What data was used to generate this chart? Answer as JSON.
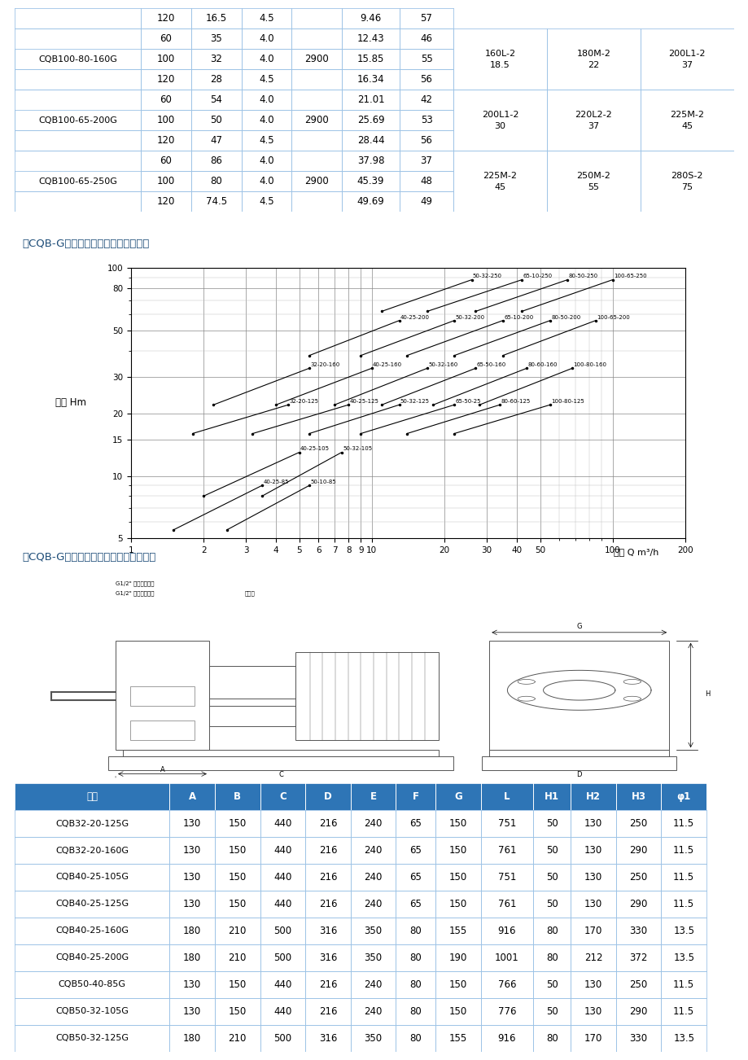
{
  "top_table_rows": [
    {
      "model": null,
      "q": "120",
      "h": "16.5",
      "eta": "4.5",
      "n": "",
      "p": "9.46",
      "npsh": "57",
      "m1": null,
      "m2": null,
      "m3": null,
      "model_span": 0
    },
    {
      "model": "CQB100-80-160G",
      "q": "60",
      "h": "35",
      "eta": "4.0",
      "n": "",
      "p": "12.43",
      "npsh": "46",
      "m1": "160L-2\n18.5",
      "m2": "180M-2\n22",
      "m3": "200L1-2\n37",
      "model_span": 3
    },
    {
      "model": null,
      "q": "100",
      "h": "32",
      "eta": "4.0",
      "n": "2900",
      "p": "15.85",
      "npsh": "55",
      "m1": null,
      "m2": null,
      "m3": null,
      "model_span": 0
    },
    {
      "model": null,
      "q": "120",
      "h": "28",
      "eta": "4.5",
      "n": "",
      "p": "16.34",
      "npsh": "56",
      "m1": null,
      "m2": null,
      "m3": null,
      "model_span": 0
    },
    {
      "model": "CQB100-65-200G",
      "q": "60",
      "h": "54",
      "eta": "4.0",
      "n": "",
      "p": "21.01",
      "npsh": "42",
      "m1": "200L1-2\n30",
      "m2": "220L2-2\n37",
      "m3": "225M-2\n45",
      "model_span": 3
    },
    {
      "model": null,
      "q": "100",
      "h": "50",
      "eta": "4.0",
      "n": "2900",
      "p": "25.69",
      "npsh": "53",
      "m1": null,
      "m2": null,
      "m3": null,
      "model_span": 0
    },
    {
      "model": null,
      "q": "120",
      "h": "47",
      "eta": "4.5",
      "n": "",
      "p": "28.44",
      "npsh": "56",
      "m1": null,
      "m2": null,
      "m3": null,
      "model_span": 0
    },
    {
      "model": "CQB100-65-250G",
      "q": "60",
      "h": "86",
      "eta": "4.0",
      "n": "",
      "p": "37.98",
      "npsh": "37",
      "m1": "225M-2\n45",
      "m2": "250M-2\n55",
      "m3": "280S-2\n75",
      "model_span": 3
    },
    {
      "model": null,
      "q": "100",
      "h": "80",
      "eta": "4.0",
      "n": "2900",
      "p": "45.39",
      "npsh": "48",
      "m1": null,
      "m2": null,
      "m3": null,
      "model_span": 0
    },
    {
      "model": null,
      "q": "120",
      "h": "74.5",
      "eta": "4.5",
      "n": "",
      "p": "49.69",
      "npsh": "49",
      "m1": null,
      "m2": null,
      "m3": null,
      "model_span": 0
    }
  ],
  "bottom_table_headers": [
    "型号",
    "A",
    "B",
    "C",
    "D",
    "E",
    "F",
    "G",
    "L",
    "H1",
    "H2",
    "H3",
    "φ1"
  ],
  "bottom_table_rows": [
    [
      "CQB32-20-125G",
      "130",
      "150",
      "440",
      "216",
      "240",
      "65",
      "150",
      "751",
      "50",
      "130",
      "250",
      "11.5"
    ],
    [
      "CQB32-20-160G",
      "130",
      "150",
      "440",
      "216",
      "240",
      "65",
      "150",
      "761",
      "50",
      "130",
      "290",
      "11.5"
    ],
    [
      "CQB40-25-105G",
      "130",
      "150",
      "440",
      "216",
      "240",
      "65",
      "150",
      "751",
      "50",
      "130",
      "250",
      "11.5"
    ],
    [
      "CQB40-25-125G",
      "130",
      "150",
      "440",
      "216",
      "240",
      "65",
      "150",
      "761",
      "50",
      "130",
      "290",
      "11.5"
    ],
    [
      "CQB40-25-160G",
      "180",
      "210",
      "500",
      "316",
      "350",
      "80",
      "155",
      "916",
      "80",
      "170",
      "330",
      "13.5"
    ],
    [
      "CQB40-25-200G",
      "180",
      "210",
      "500",
      "316",
      "350",
      "80",
      "190",
      "1001",
      "80",
      "212",
      "372",
      "13.5"
    ],
    [
      "CQB50-40-85G",
      "130",
      "150",
      "440",
      "216",
      "240",
      "80",
      "150",
      "766",
      "50",
      "130",
      "250",
      "11.5"
    ],
    [
      "CQB50-32-105G",
      "130",
      "150",
      "440",
      "216",
      "240",
      "80",
      "150",
      "776",
      "50",
      "130",
      "290",
      "11.5"
    ],
    [
      "CQB50-32-125G",
      "180",
      "210",
      "500",
      "316",
      "350",
      "80",
      "155",
      "916",
      "80",
      "170",
      "330",
      "13.5"
    ]
  ],
  "header_bg": "#2E75B6",
  "header_fg": "#FFFFFF",
  "border_color": "#9DC3E6",
  "separator_color": "#2E75B6",
  "label1": "「CQB-G型高温磁力驱动泵」型谱图：",
  "label2": "「CQB-G型高温磁力驱动泵」外形尺小：",
  "chart_ylabel": "扬程 Hm",
  "chart_xlabel": "流量 Q m³/h",
  "label_color": "#1F4E79",
  "curve_data": [
    [
      "40-25-85",
      1.5,
      5.5,
      3.5,
      9.0
    ],
    [
      "50-10-85",
      2.5,
      5.5,
      5.5,
      9.0
    ],
    [
      "40-25-105",
      2.0,
      8.0,
      5.0,
      13.0
    ],
    [
      "50-32-105",
      3.5,
      8.0,
      7.5,
      13.0
    ],
    [
      "32-20-125",
      1.8,
      16.0,
      4.5,
      22.0
    ],
    [
      "40-25-125",
      3.2,
      16.0,
      8.0,
      22.0
    ],
    [
      "50-32-125",
      5.5,
      16.0,
      13.0,
      22.0
    ],
    [
      "65-50-25",
      9.0,
      16.0,
      22.0,
      22.0
    ],
    [
      "80-60-125",
      14.0,
      16.0,
      34.0,
      22.0
    ],
    [
      "100-80-125",
      22.0,
      16.0,
      55.0,
      22.0
    ],
    [
      "32-20-160",
      2.2,
      22.0,
      5.5,
      33.0
    ],
    [
      "40-25-160",
      4.0,
      22.0,
      10.0,
      33.0
    ],
    [
      "50-32-160",
      7.0,
      22.0,
      17.0,
      33.0
    ],
    [
      "65-50-160",
      11.0,
      22.0,
      27.0,
      33.0
    ],
    [
      "80-60-160",
      18.0,
      22.0,
      44.0,
      33.0
    ],
    [
      "100-80-160",
      28.0,
      22.0,
      68.0,
      33.0
    ],
    [
      "40-25-200",
      5.5,
      38.0,
      13.0,
      56.0
    ],
    [
      "50-32-200",
      9.0,
      38.0,
      22.0,
      56.0
    ],
    [
      "65-10-200",
      14.0,
      38.0,
      35.0,
      56.0
    ],
    [
      "80-50-200",
      22.0,
      38.0,
      55.0,
      56.0
    ],
    [
      "100-65-200",
      35.0,
      38.0,
      85.0,
      56.0
    ],
    [
      "50-32-250",
      11.0,
      62.0,
      26.0,
      88.0
    ],
    [
      "65-10-250",
      17.0,
      62.0,
      42.0,
      88.0
    ],
    [
      "80-50-250",
      27.0,
      62.0,
      65.0,
      88.0
    ],
    [
      "100-65-250",
      42.0,
      62.0,
      100.0,
      88.0
    ]
  ]
}
